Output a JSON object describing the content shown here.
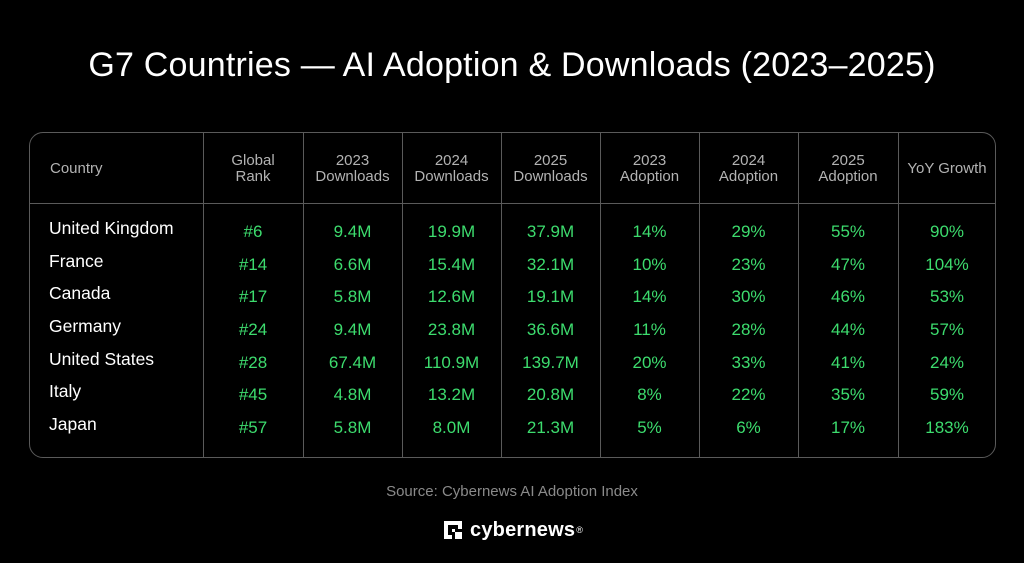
{
  "title": "G7 Countries — AI Adoption & Downloads (2023–2025)",
  "chart_data": {
    "type": "table",
    "columns": [
      "Country",
      "Global Rank",
      "2023 Downloads",
      "2024 Downloads",
      "2025 Downloads",
      "2023 Adoption",
      "2024 Adoption",
      "2025 Adoption",
      "YoY Growth"
    ],
    "rows": [
      [
        "United Kingdom",
        "#6",
        "9.4M",
        "19.9M",
        "37.9M",
        "14%",
        "29%",
        "55%",
        "90%"
      ],
      [
        "France",
        "#14",
        "6.6M",
        "15.4M",
        "32.1M",
        "10%",
        "23%",
        "47%",
        "104%"
      ],
      [
        "Canada",
        "#17",
        "5.8M",
        "12.6M",
        "19.1M",
        "14%",
        "30%",
        "46%",
        "53%"
      ],
      [
        "Germany",
        "#24",
        "9.4M",
        "23.8M",
        "36.6M",
        "11%",
        "28%",
        "44%",
        "57%"
      ],
      [
        "United States",
        "#28",
        "67.4M",
        "110.9M",
        "139.7M",
        "20%",
        "33%",
        "41%",
        "24%"
      ],
      [
        "Italy",
        "#45",
        "4.8M",
        "13.2M",
        "20.8M",
        "8%",
        "22%",
        "35%",
        "59%"
      ],
      [
        "Japan",
        "#57",
        "5.8M",
        "8.0M",
        "21.3M",
        "5%",
        "6%",
        "17%",
        "183%"
      ]
    ]
  },
  "source": "Source: Cybernews AI Adoption Index",
  "brand": {
    "name": "cybernews",
    "reg_mark": "®",
    "logo_icon": "cybernews-logo-icon"
  },
  "colors": {
    "background": "#000000",
    "title": "#ffffff",
    "header_text": "#b3b3b3",
    "value_text": "#3ddc6e",
    "country_text": "#ffffff",
    "grid": "#5a5a5a",
    "source_text": "#8a8a8a"
  }
}
